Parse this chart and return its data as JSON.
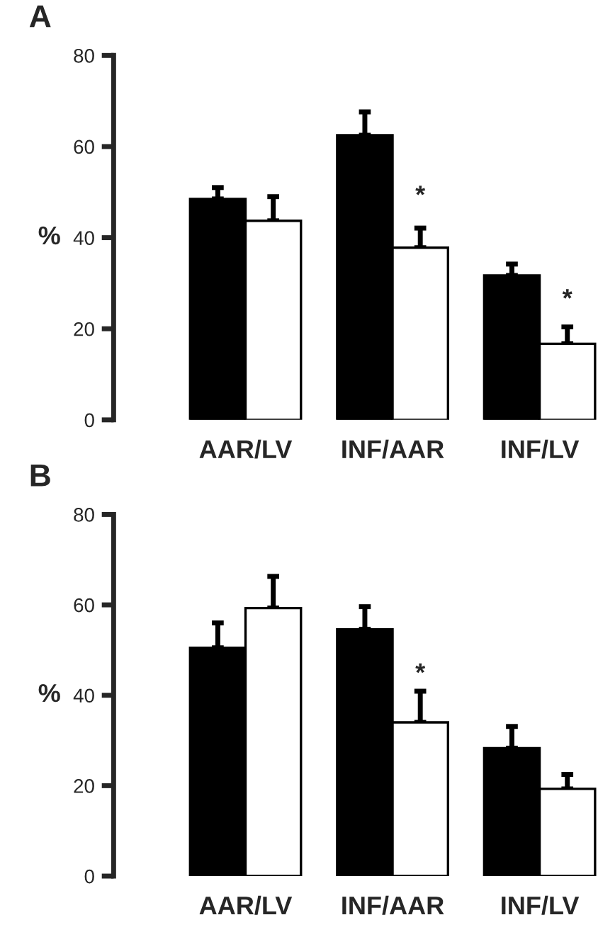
{
  "chart_data": [
    {
      "type": "bar",
      "title": "A",
      "ylabel": "%",
      "categories": [
        "AAR/LV",
        "INF/AAR",
        "INF/LV"
      ],
      "series": [
        {
          "color": "#000000",
          "values": [
            48.5,
            62.5,
            31.7
          ],
          "errors": [
            [
              48.5,
              51
            ],
            [
              62.5,
              67.6
            ],
            [
              31.7,
              34.2
            ]
          ]
        },
        {
          "color": "#ffffff",
          "values": [
            43.7,
            37.8,
            16.7
          ],
          "errors": [
            [
              43.7,
              49
            ],
            [
              37.8,
              42.1
            ],
            [
              16.7,
              20.4
            ]
          ]
        }
      ],
      "annotations": [
        {
          "text": "*",
          "x": "INF/AAR",
          "y": 49
        },
        {
          "text": "*",
          "x": "INF/LV",
          "y": 26.3
        }
      ],
      "ylim": [
        0,
        80
      ],
      "yticks": [
        0,
        20,
        40,
        60,
        80
      ],
      "grid": false,
      "legend": false
    },
    {
      "type": "bar",
      "title": "B",
      "ylabel": "%",
      "categories": [
        "AAR/LV",
        "INF/AAR",
        "INF/LV"
      ],
      "series": [
        {
          "color": "#000000",
          "values": [
            50.5,
            54.6,
            28.3
          ],
          "errors": [
            [
              50.5,
              56
            ],
            [
              54.6,
              59.6
            ],
            [
              28.3,
              33.1
            ]
          ]
        },
        {
          "color": "#ffffff",
          "values": [
            59.3,
            34,
            19.3
          ],
          "errors": [
            [
              59.3,
              66.3
            ],
            [
              34,
              40.9
            ],
            [
              19.3,
              22.5
            ]
          ]
        }
      ],
      "annotations": [
        {
          "text": "*",
          "x": "INF/AAR",
          "y": 44.6
        }
      ],
      "ylim": [
        0,
        80
      ],
      "yticks": [
        0,
        20,
        40,
        60,
        80
      ],
      "grid": false,
      "legend": false
    }
  ]
}
